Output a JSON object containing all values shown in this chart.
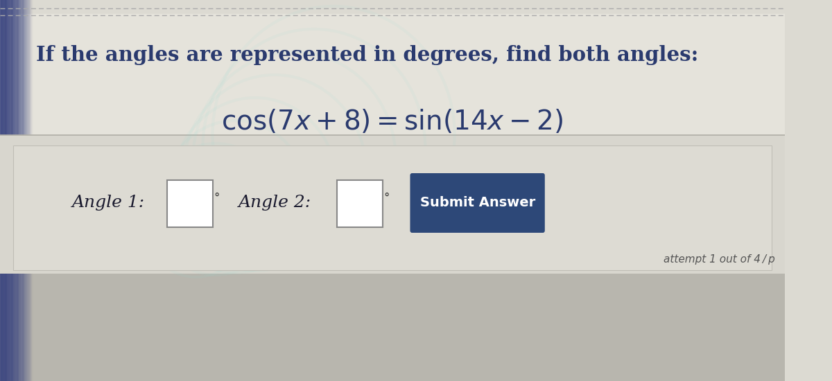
{
  "title_text": "If the angles are represented in degrees, find both angles:",
  "equation_latex": "$\\cos(7x + 8) = \\sin(14x - 2)$",
  "angle1_label": "Angle 1:",
  "angle2_label": "Angle 2:",
  "button_text": "Submit Answer",
  "attempt_text": "attempt 1 out of 4 / p",
  "bg_color": "#dcdad2",
  "paper_bg": "#e8e6de",
  "panel_bg_top": "#d5d3c8",
  "panel_bg_bottom": "#c8c6bc",
  "top_border_color": "#999999",
  "title_color": "#2a3a6e",
  "equation_color": "#2a3a6e",
  "button_bg": "#2d4878",
  "button_text_color": "#ffffff",
  "box_border_color": "#777777",
  "degree_color": "#333333",
  "attempt_color": "#555555",
  "label_color": "#1a1a2e"
}
